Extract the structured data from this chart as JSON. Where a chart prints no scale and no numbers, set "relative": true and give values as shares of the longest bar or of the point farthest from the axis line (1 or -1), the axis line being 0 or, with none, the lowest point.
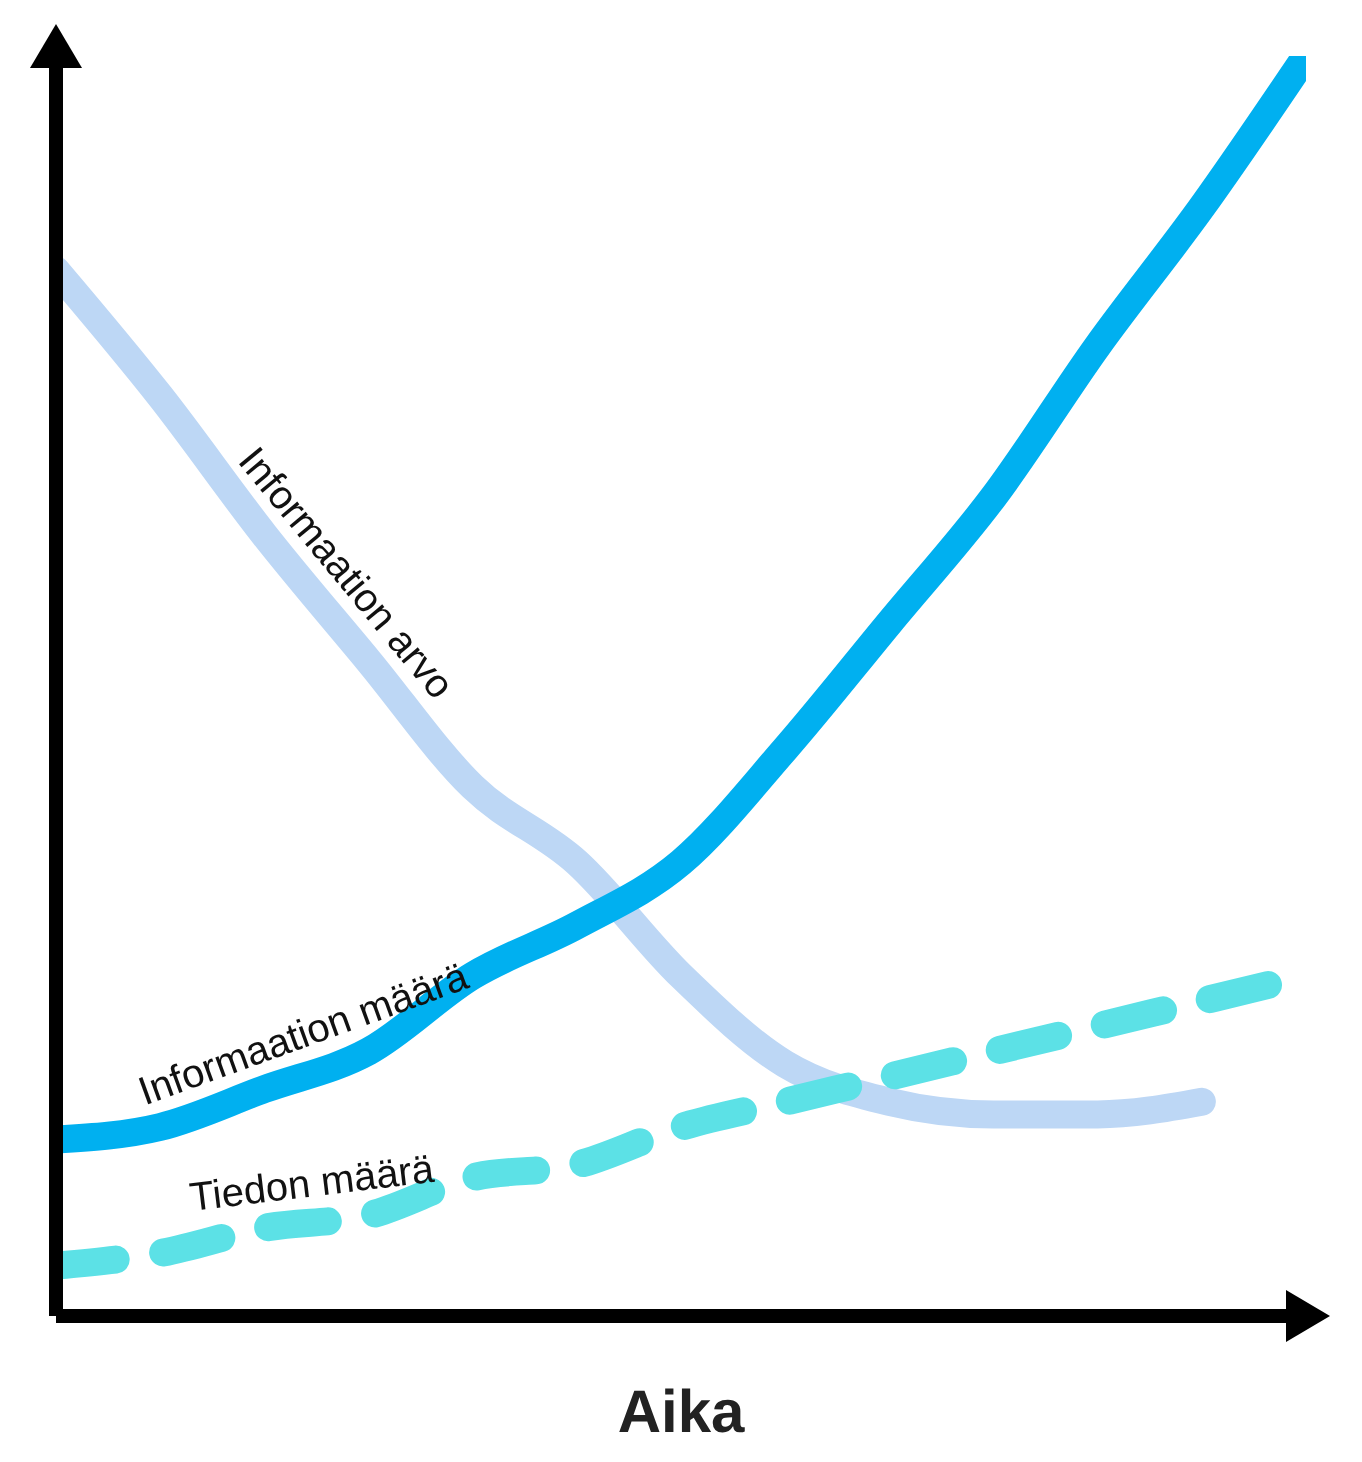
{
  "chart_data": {
    "type": "line",
    "xlabel": "Aika",
    "relative": true,
    "grid": false,
    "legend": false,
    "marker": "none",
    "categories": [
      null,
      null,
      null,
      null,
      null,
      null,
      null,
      null,
      null,
      null,
      null,
      null,
      null
    ],
    "series": [
      {
        "name": "Informaation arvo",
        "color": "#bdd7f5",
        "line_style": "solid",
        "values": [
          0.83,
          0.73,
          0.62,
          0.52,
          0.42,
          0.36,
          0.27,
          0.2,
          0.17,
          0.16,
          0.16,
          0.17,
          null
        ]
      },
      {
        "name": "Informaation määrä",
        "color": "#00b0f0",
        "line_style": "solid",
        "values": [
          0.14,
          0.15,
          0.18,
          0.21,
          0.27,
          0.31,
          0.36,
          0.45,
          0.55,
          0.65,
          0.77,
          0.88,
          1
        ]
      },
      {
        "name": "Tiedon määrä",
        "color": "#5ce1e6",
        "line_style": "dashed",
        "values": [
          0.04,
          0.05,
          0.07,
          0.08,
          0.11,
          0.12,
          0.15,
          0.17,
          0.19,
          0.21,
          0.23,
          0.25,
          0.27
        ]
      }
    ]
  }
}
